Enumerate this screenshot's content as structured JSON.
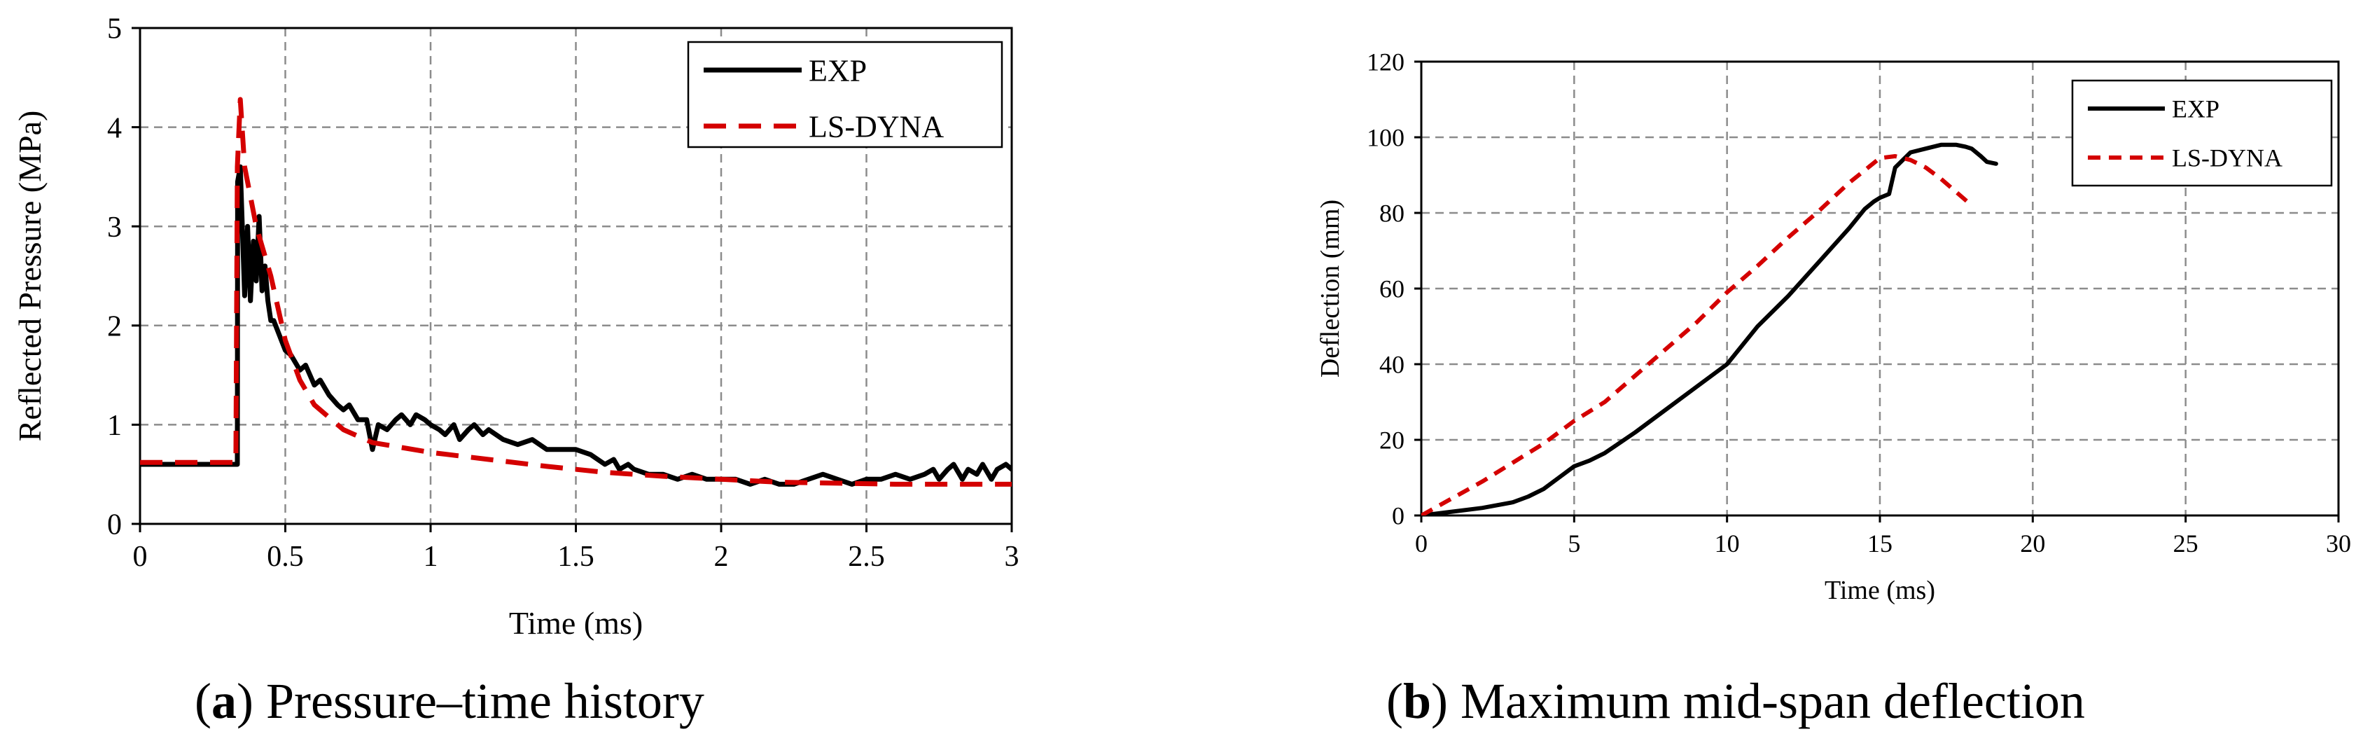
{
  "colors": {
    "exp": "#000000",
    "lsdyna": "#d40000",
    "grid": "#8c8c8c",
    "axis": "#000000"
  },
  "captions": {
    "a": {
      "open": "(",
      "letter": "a",
      "close": ")",
      "text": " Pressure–time history"
    },
    "b": {
      "open": "(",
      "letter": "b",
      "close": ")",
      "text": " Maximum mid-span deflection"
    }
  },
  "chart_data": [
    {
      "id": "a",
      "type": "line",
      "title": "",
      "xlabel": "Time (ms)",
      "ylabel": "Reflected Pressure (MPa)",
      "xlim": [
        0,
        3
      ],
      "ylim": [
        0,
        5
      ],
      "xticks": [
        0,
        0.5,
        1,
        1.5,
        2,
        2.5,
        3
      ],
      "xtick_labels": [
        "0",
        "0.5",
        "1",
        "1.5",
        "2",
        "2.5",
        "3"
      ],
      "yticks": [
        0,
        1,
        2,
        3,
        4,
        5
      ],
      "ytick_labels": [
        "0",
        "1",
        "2",
        "3",
        "4",
        "5"
      ],
      "grid": true,
      "legend_position": "top-right",
      "series": [
        {
          "name": "EXP",
          "style": "solid",
          "x": [
            0,
            0.335,
            0.336,
            0.345,
            0.36,
            0.37,
            0.38,
            0.39,
            0.4,
            0.41,
            0.42,
            0.43,
            0.44,
            0.45,
            0.46,
            0.48,
            0.5,
            0.52,
            0.55,
            0.57,
            0.6,
            0.62,
            0.65,
            0.68,
            0.7,
            0.72,
            0.75,
            0.78,
            0.8,
            0.82,
            0.85,
            0.88,
            0.9,
            0.93,
            0.95,
            0.98,
            1.0,
            1.03,
            1.05,
            1.08,
            1.1,
            1.13,
            1.15,
            1.18,
            1.2,
            1.25,
            1.3,
            1.35,
            1.4,
            1.45,
            1.5,
            1.55,
            1.6,
            1.63,
            1.65,
            1.68,
            1.7,
            1.75,
            1.8,
            1.85,
            1.9,
            1.95,
            2.0,
            2.05,
            2.1,
            2.15,
            2.2,
            2.25,
            2.3,
            2.35,
            2.4,
            2.45,
            2.5,
            2.55,
            2.6,
            2.65,
            2.7,
            2.73,
            2.75,
            2.78,
            2.8,
            2.83,
            2.85,
            2.88,
            2.9,
            2.93,
            2.95,
            2.98,
            3.0
          ],
          "y": [
            0.6,
            0.6,
            3.45,
            3.6,
            2.3,
            3.0,
            2.25,
            2.85,
            2.45,
            3.1,
            2.35,
            2.6,
            2.25,
            2.05,
            2.05,
            1.9,
            1.75,
            1.7,
            1.55,
            1.6,
            1.4,
            1.45,
            1.3,
            1.2,
            1.15,
            1.2,
            1.05,
            1.05,
            0.75,
            1.0,
            0.95,
            1.05,
            1.1,
            1.0,
            1.1,
            1.05,
            1.0,
            0.95,
            0.9,
            1.0,
            0.85,
            0.95,
            1.0,
            0.9,
            0.95,
            0.85,
            0.8,
            0.85,
            0.75,
            0.75,
            0.75,
            0.7,
            0.6,
            0.65,
            0.55,
            0.6,
            0.55,
            0.5,
            0.5,
            0.45,
            0.5,
            0.45,
            0.45,
            0.45,
            0.4,
            0.45,
            0.4,
            0.4,
            0.45,
            0.5,
            0.45,
            0.4,
            0.45,
            0.45,
            0.5,
            0.45,
            0.5,
            0.55,
            0.45,
            0.55,
            0.6,
            0.45,
            0.55,
            0.5,
            0.6,
            0.45,
            0.55,
            0.6,
            0.55
          ]
        },
        {
          "name": "LS-DYNA",
          "style": "dashed",
          "x": [
            0,
            0.33,
            0.335,
            0.345,
            0.36,
            0.38,
            0.4,
            0.45,
            0.5,
            0.55,
            0.6,
            0.7,
            0.8,
            1.0,
            1.2,
            1.4,
            1.6,
            1.8,
            2.0,
            2.2,
            2.4,
            2.6,
            2.8,
            3.0
          ],
          "y": [
            0.62,
            0.62,
            3.6,
            4.28,
            3.6,
            3.3,
            3.0,
            2.5,
            1.85,
            1.45,
            1.2,
            0.95,
            0.82,
            0.72,
            0.65,
            0.58,
            0.52,
            0.48,
            0.45,
            0.42,
            0.41,
            0.4,
            0.4,
            0.4
          ]
        }
      ]
    },
    {
      "id": "b",
      "type": "line",
      "title": "",
      "xlabel": "Time (ms)",
      "ylabel": "Deflection (mm)",
      "xlim": [
        0,
        30
      ],
      "ylim": [
        0,
        120
      ],
      "xticks": [
        0,
        5,
        10,
        15,
        20,
        25,
        30
      ],
      "xtick_labels": [
        "0",
        "5",
        "10",
        "15",
        "20",
        "25",
        "30"
      ],
      "yticks": [
        0,
        20,
        40,
        60,
        80,
        100,
        120
      ],
      "ytick_labels": [
        "0",
        "20",
        "40",
        "60",
        "80",
        "100",
        "120"
      ],
      "grid": true,
      "legend_position": "top-right",
      "series": [
        {
          "name": "EXP",
          "style": "solid",
          "x": [
            0,
            1,
            2,
            3,
            3.5,
            4,
            4.5,
            5,
            5.5,
            6,
            7,
            8,
            9,
            10,
            10.5,
            11,
            12,
            13,
            14,
            14.5,
            14.8,
            15,
            15.3,
            15.5,
            16,
            16.5,
            17,
            17.5,
            17.8,
            18,
            18.3,
            18.5,
            18.8
          ],
          "y": [
            0,
            1,
            2,
            3.5,
            5,
            7,
            10,
            13,
            14.5,
            16.5,
            22,
            28,
            34,
            40,
            45,
            50,
            58,
            67,
            76,
            81,
            83,
            84,
            85,
            92,
            96,
            97,
            98,
            98,
            97.5,
            97,
            95,
            93.5,
            93
          ]
        },
        {
          "name": "LS-DYNA",
          "style": "dashed",
          "x": [
            0,
            1,
            2,
            3,
            4,
            5,
            6,
            7,
            8,
            9,
            10,
            11,
            12,
            13,
            14,
            15,
            15.5,
            16,
            16.5,
            17,
            17.5,
            18
          ],
          "y": [
            0,
            4.5,
            9,
            14,
            19,
            25,
            30,
            37,
            44,
            51,
            59,
            66,
            73.5,
            80.5,
            88,
            94.5,
            95,
            94,
            92,
            89,
            85.5,
            82
          ]
        }
      ]
    }
  ]
}
